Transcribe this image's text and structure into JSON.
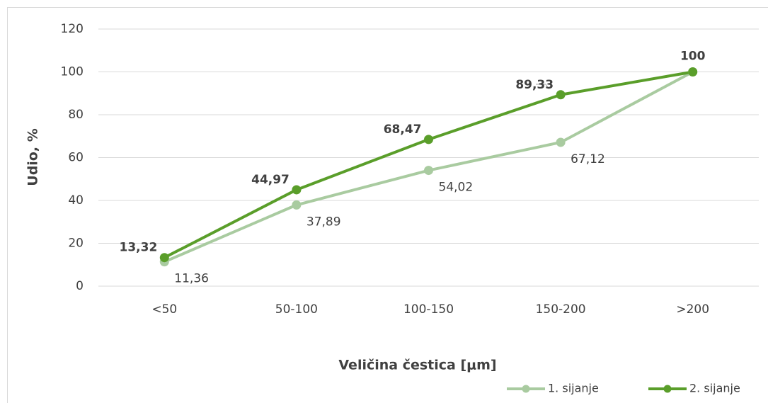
{
  "chart_data": {
    "type": "line",
    "xlabel": "Veličina čestica [μm]",
    "ylabel": "Udio, %",
    "categories": [
      "<50",
      "50-100",
      "100-150",
      "150-200",
      ">200"
    ],
    "series": [
      {
        "name": "1. sijanje",
        "color": "#a9cba0",
        "values": [
          11.36,
          37.89,
          54.02,
          67.12,
          100
        ],
        "value_labels": [
          "11,36",
          "37,89",
          "54,02",
          "67,12",
          null
        ]
      },
      {
        "name": "2. sijanje",
        "color": "#5a9e2a",
        "values": [
          13.32,
          44.97,
          68.47,
          89.33,
          100
        ],
        "value_labels": [
          "13,32",
          "44,97",
          "68,47",
          "89,33",
          "100"
        ]
      }
    ],
    "ylim": [
      0,
      120
    ],
    "yticks": [
      0,
      20,
      40,
      60,
      80,
      100,
      120
    ],
    "grid": true,
    "legend": "bottom-right"
  }
}
